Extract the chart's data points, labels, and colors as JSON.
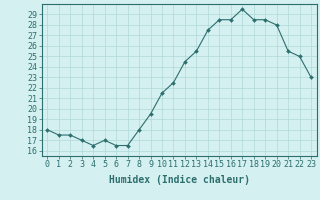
{
  "x": [
    0,
    1,
    2,
    3,
    4,
    5,
    6,
    7,
    8,
    9,
    10,
    11,
    12,
    13,
    14,
    15,
    16,
    17,
    18,
    19,
    20,
    21,
    22,
    23
  ],
  "y": [
    18.0,
    17.5,
    17.5,
    17.0,
    16.5,
    17.0,
    16.5,
    16.5,
    18.0,
    19.5,
    21.5,
    22.5,
    24.5,
    25.5,
    27.5,
    28.5,
    28.5,
    29.5,
    28.5,
    28.5,
    28.0,
    25.5,
    25.0,
    23.0
  ],
  "line_color": "#2d6e6e",
  "marker_color": "#2d6e6e",
  "bg_color": "#d4f0f0",
  "grid_color": "#b0d8d8",
  "xlabel": "Humidex (Indice chaleur)",
  "ylabel_ticks": [
    16,
    17,
    18,
    19,
    20,
    21,
    22,
    23,
    24,
    25,
    26,
    27,
    28,
    29
  ],
  "ylim": [
    15.5,
    30.0
  ],
  "xlim": [
    -0.5,
    23.5
  ],
  "font_color": "#2d6e6e",
  "tick_label_size": 6,
  "xlabel_size": 7
}
